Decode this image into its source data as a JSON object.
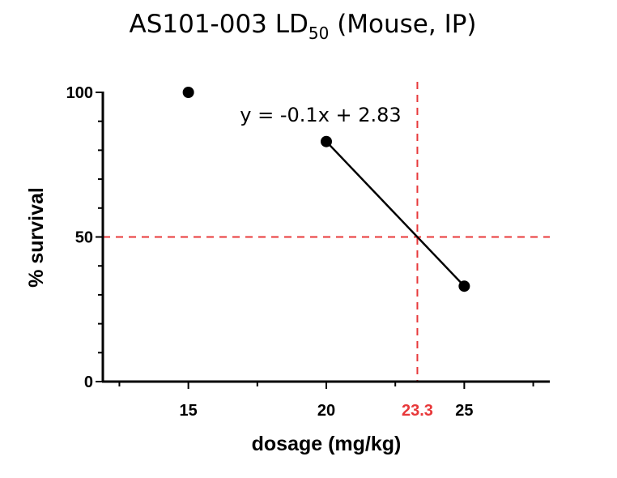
{
  "chart_data": {
    "type": "scatter",
    "title": "AS101-003 LD",
    "title_subscript": "50",
    "title_suffix": " (Mouse, IP)",
    "xlabel": "dosage (mg/kg)",
    "ylabel": "% survival",
    "xlim": [
      11.9,
      28.1
    ],
    "ylim": [
      0,
      100
    ],
    "x_ticks": [
      15,
      20,
      25
    ],
    "y_ticks": [
      0,
      50,
      100
    ],
    "y_minor_step": 10,
    "x_minor_step": 2.5,
    "points": [
      {
        "x": 15,
        "y": 100
      },
      {
        "x": 20,
        "y": 83
      },
      {
        "x": 25,
        "y": 33
      }
    ],
    "fit_line": {
      "x": [
        20,
        25
      ],
      "y": [
        83,
        33
      ],
      "color": "#000000"
    },
    "equation_label": "y = -0.1x + 2.83",
    "ref_lines": {
      "horizontal": {
        "y": 50,
        "color": "#e8383a"
      },
      "vertical": {
        "x": 23.3,
        "label": "23.3",
        "color": "#e8383a"
      }
    },
    "grid": false,
    "legend": "none"
  }
}
